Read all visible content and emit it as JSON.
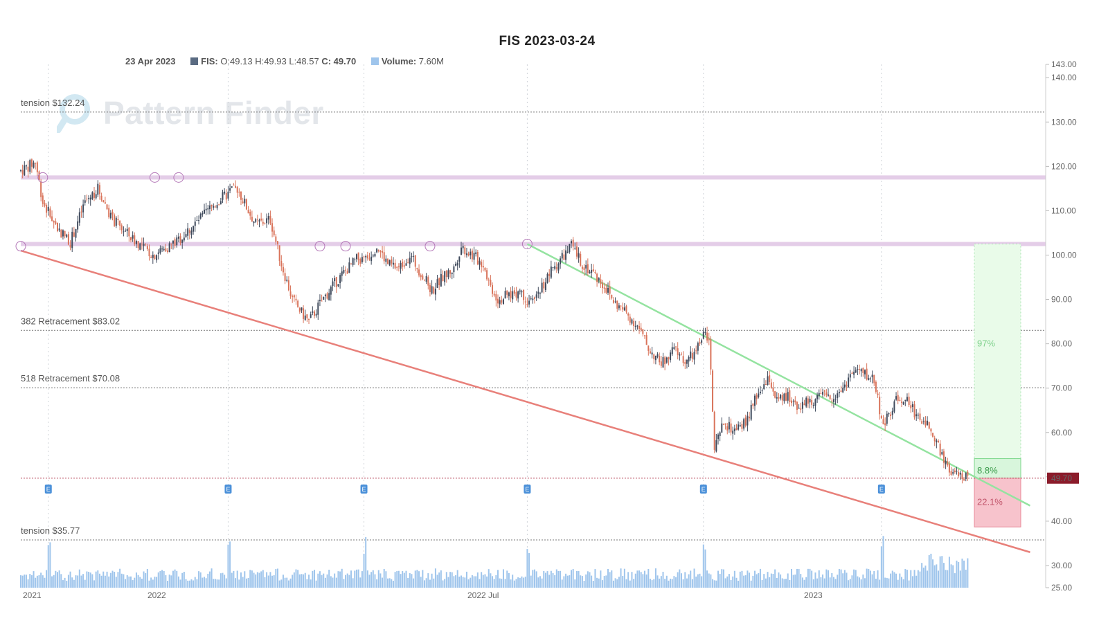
{
  "title": "FIS 2023-03-24",
  "ohlc": {
    "date": "23 Apr 2023",
    "ticker_label": "FIS:",
    "values": "O:49.13 H:49.93 L:48.57",
    "close_label": "C: 49.70",
    "volume_label": "Volume:",
    "volume_value": "7.60M"
  },
  "watermark": "Pattern Finder",
  "colors": {
    "up": "#3f4a5c",
    "down": "#d9735a",
    "support_line": "#e8807a",
    "resistance_line": "#94e3a0",
    "horizontal_band": "#e4cde8",
    "volume": "#9fc5ec",
    "target_zone": "#e9fbe9",
    "stop_zone": "#f7c3cc",
    "price_tag": "#8b1c2b"
  },
  "levels": [
    {
      "label": "tension $132.24",
      "value": 132.24
    },
    {
      "label": "382 Retracement $83.02",
      "value": 83.02
    },
    {
      "label": "518 Retracement $70.08",
      "value": 70.08
    },
    {
      "label": "tension $35.77",
      "value": 35.77
    }
  ],
  "zones": {
    "target_pct": "97%",
    "near_pct": "8.8%",
    "stop_pct": "22.1%",
    "current_price": "49.70"
  },
  "earnings_marker": "E",
  "chart_data": {
    "type": "candlestick",
    "title": "FIS 2023-03-24",
    "ylim": [
      25,
      143
    ],
    "y_ticks": [
      "143.00",
      "140.00",
      "130.00",
      "120.00",
      "110.00",
      "100.00",
      "90.00",
      "80.00",
      "70.00",
      "60.00",
      "50.00",
      "40.00",
      "30.00",
      "25.00"
    ],
    "x_ticks": [
      "2021",
      "2022",
      "2022 Jul",
      "2023"
    ],
    "grid": true,
    "series": [
      {
        "name": "FIS",
        "kind": "price",
        "path_points": [
          [
            0,
            119
          ],
          [
            8,
            121
          ],
          [
            12,
            112
          ],
          [
            20,
            106
          ],
          [
            27,
            103
          ],
          [
            35,
            112
          ],
          [
            42,
            115
          ],
          [
            50,
            108
          ],
          [
            60,
            104
          ],
          [
            72,
            100
          ],
          [
            85,
            103
          ],
          [
            95,
            107
          ],
          [
            102,
            110
          ],
          [
            110,
            113
          ],
          [
            118,
            115
          ],
          [
            124,
            110
          ],
          [
            128,
            107
          ],
          [
            136,
            108
          ],
          [
            142,
            98
          ],
          [
            148,
            90
          ],
          [
            153,
            87
          ],
          [
            157,
            85
          ],
          [
            163,
            89
          ],
          [
            170,
            93
          ],
          [
            176,
            96
          ],
          [
            183,
            99
          ],
          [
            188,
            99
          ],
          [
            194,
            102
          ],
          [
            200,
            98
          ],
          [
            206,
            97
          ],
          [
            212,
            100
          ],
          [
            218,
            96
          ],
          [
            224,
            92
          ],
          [
            230,
            95
          ],
          [
            236,
            97
          ],
          [
            240,
            102
          ],
          [
            246,
            100
          ],
          [
            252,
            98
          ],
          [
            256,
            93
          ],
          [
            260,
            90
          ],
          [
            266,
            91
          ],
          [
            272,
            92
          ],
          [
            278,
            89
          ],
          [
            284,
            93
          ],
          [
            290,
            97
          ],
          [
            296,
            100
          ],
          [
            300,
            102
          ],
          [
            306,
            98
          ],
          [
            312,
            96
          ],
          [
            318,
            93
          ],
          [
            324,
            89
          ],
          [
            330,
            87
          ],
          [
            336,
            84
          ],
          [
            342,
            79
          ],
          [
            348,
            76
          ],
          [
            352,
            76
          ],
          [
            356,
            79
          ],
          [
            362,
            76
          ],
          [
            368,
            78
          ],
          [
            372,
            82
          ],
          [
            375,
            82
          ],
          [
            378,
            56
          ],
          [
            383,
            62
          ],
          [
            390,
            60
          ],
          [
            396,
            63
          ],
          [
            402,
            69
          ],
          [
            408,
            72
          ],
          [
            412,
            67
          ],
          [
            418,
            68
          ],
          [
            424,
            66
          ],
          [
            430,
            67
          ],
          [
            436,
            68
          ],
          [
            442,
            68
          ],
          [
            448,
            70
          ],
          [
            452,
            73
          ],
          [
            456,
            74
          ],
          [
            460,
            73
          ],
          [
            465,
            72
          ],
          [
            470,
            61
          ],
          [
            476,
            67
          ],
          [
            482,
            68
          ],
          [
            488,
            64
          ],
          [
            494,
            62
          ],
          [
            500,
            57
          ],
          [
            506,
            51
          ],
          [
            512,
            50
          ],
          [
            516,
            49.7
          ]
        ],
        "note": "daily OHLC approximated from the pictured price path"
      },
      {
        "name": "Volume",
        "kind": "volume",
        "volume_last": "7.60M"
      }
    ],
    "trendlines": [
      {
        "name": "support",
        "from": [
          0,
          101
        ],
        "to": [
          550,
          33
        ]
      },
      {
        "name": "resistance",
        "from": [
          276,
          102.5
        ],
        "to": [
          550,
          43.5
        ]
      }
    ],
    "horizontal_bands": [
      117.5,
      102.5
    ],
    "pivots": [
      [
        0,
        102
      ],
      [
        12,
        117.5
      ],
      [
        73,
        117.5
      ],
      [
        86,
        117.5
      ],
      [
        163,
        102
      ],
      [
        177,
        102
      ],
      [
        223,
        102
      ],
      [
        276,
        102.5
      ]
    ],
    "earnings_indices": [
      15,
      113,
      187,
      276,
      372,
      469
    ]
  }
}
